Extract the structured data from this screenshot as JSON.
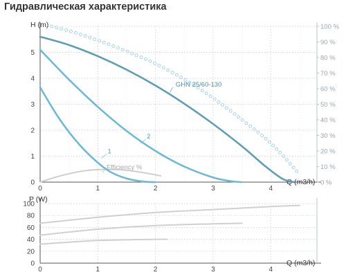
{
  "page_title": "Гидравлическая характеристика",
  "colors": {
    "model_curve": "#5e9eb4",
    "speed_curves": "#6bbad6",
    "npsh_dots": "#a8d4e6",
    "efficiency": "#cfcfcf",
    "power": "#d0d0d0",
    "grid": "#c9c9c9",
    "axis": "#555555"
  },
  "chart_data": [
    {
      "type": "line",
      "xlabel": "Q (m3/h)",
      "ylabel": "H (m)",
      "y2label_ticks": [
        "0 %",
        "10 %",
        "20 %",
        "30 %",
        "40 %",
        "50 %",
        "60 %",
        "70 %",
        "80 %",
        "90 %",
        "100 %"
      ],
      "xlim": [
        0,
        4.8
      ],
      "ylim": [
        0,
        6
      ],
      "y2lim": [
        0,
        100
      ],
      "x_ticks": [
        0,
        1,
        2,
        3,
        4
      ],
      "y_ticks": [
        0,
        1,
        2,
        3,
        4,
        5,
        "H (m)"
      ],
      "grid": true,
      "series": [
        {
          "name": "GHN 25/60-130",
          "x": [
            0,
            0.5,
            1.0,
            1.5,
            2.0,
            2.5,
            3.0,
            3.5,
            3.9,
            4.2,
            4.4
          ],
          "y": [
            5.6,
            5.28,
            4.85,
            4.33,
            3.72,
            3.02,
            2.24,
            1.38,
            0.62,
            0.13,
            0.0
          ]
        },
        {
          "name": "2",
          "x": [
            0,
            0.5,
            1.0,
            1.5,
            2.0,
            2.5,
            3.0,
            3.3,
            3.5
          ],
          "y": [
            5.1,
            3.95,
            2.9,
            1.97,
            1.2,
            0.6,
            0.18,
            0.04,
            0.0
          ]
        },
        {
          "name": "1",
          "x": [
            0,
            0.3,
            0.6,
            0.9,
            1.2,
            1.5,
            1.8,
            2.0
          ],
          "y": [
            3.65,
            2.55,
            1.65,
            0.95,
            0.42,
            0.14,
            0.02,
            0.0
          ]
        },
        {
          "name": "Efficiency %",
          "axis": "right",
          "x": [
            0,
            0.3,
            0.6,
            0.9,
            1.2,
            1.5,
            1.8,
            2.1
          ],
          "y": [
            0,
            3.5,
            6.2,
            7.8,
            8.2,
            7.6,
            6.0,
            4.0
          ]
        },
        {
          "name": "",
          "style": "dotted",
          "axis": "right",
          "x": [
            0.2,
            0.6,
            1.0,
            1.5,
            2.0,
            2.5,
            3.0,
            3.5,
            4.0,
            4.5
          ],
          "y": [
            100,
            96,
            91,
            84,
            76,
            66,
            54,
            40,
            25,
            5
          ]
        }
      ]
    },
    {
      "type": "line",
      "xlabel": "Q (m3/h)",
      "ylabel": "P (W)",
      "xlim": [
        0,
        4.8
      ],
      "ylim": [
        0,
        100
      ],
      "x_ticks": [
        0,
        1,
        2,
        3,
        4
      ],
      "y_ticks": [
        0,
        20,
        40,
        60,
        80,
        100
      ],
      "grid": true,
      "series": [
        {
          "x": [
            0,
            1,
            2,
            3,
            4,
            4.5
          ],
          "y": [
            67,
            77,
            85,
            90,
            95,
            97
          ]
        },
        {
          "x": [
            0,
            1,
            2,
            3,
            3.5
          ],
          "y": [
            47,
            57,
            63,
            66,
            67
          ]
        },
        {
          "x": [
            0,
            1,
            2,
            2.2
          ],
          "y": [
            32,
            38,
            40,
            40
          ]
        }
      ]
    }
  ]
}
